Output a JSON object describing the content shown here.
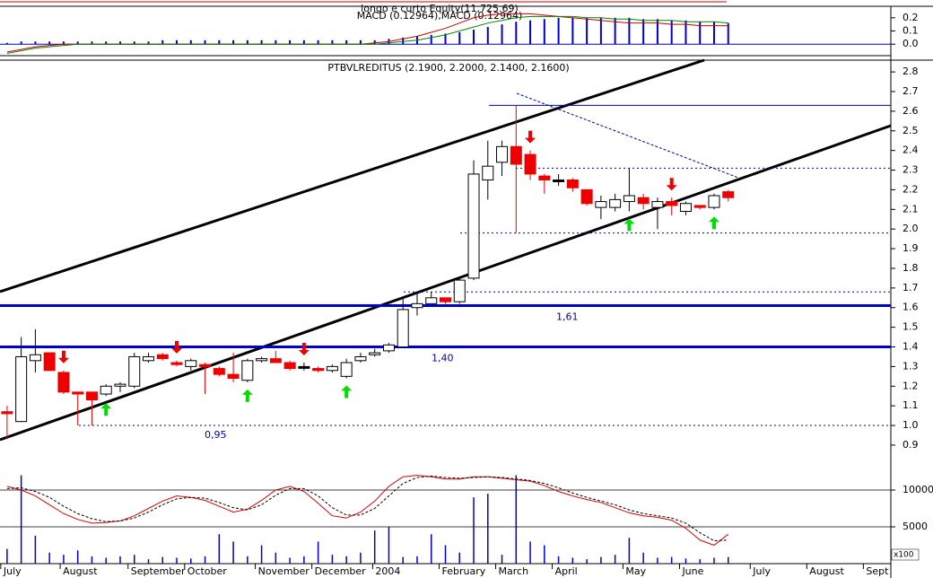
{
  "chart_data": [
    {
      "type": "macd",
      "title": "longo e curto Equity(11,725.69)",
      "subtitle": "MACD (0.12964),MACD (0.12964)",
      "xlim": [
        -0.5,
        62.5
      ],
      "ylim": [
        -0.087,
        0.287
      ],
      "yticks": [
        0.2,
        0.1,
        {
          "value": 0,
          "label": "0.0"
        }
      ],
      "bars": {
        "color": "#0000cc",
        "values": [
          0.01,
          0.02,
          0.02,
          0.02,
          0.02,
          0.02,
          0.02,
          0.02,
          0.02,
          0.02,
          0.02,
          0.03,
          0.03,
          0.03,
          0.03,
          0.03,
          0.03,
          0.03,
          0.03,
          0.03,
          0.03,
          0.03,
          0.03,
          0.03,
          0.03,
          0.03,
          0.03,
          0.04,
          0.05,
          0.06,
          0.07,
          0.08,
          0.09,
          0.11,
          0.13,
          0.15,
          0.17,
          0.18,
          0.19,
          0.2,
          0.2,
          0.2,
          0.2,
          0.2,
          0.2,
          0.19,
          0.19,
          0.18,
          0.18,
          0.17,
          0.17,
          0.16
        ]
      },
      "series": [
        {
          "color": "#cc0000",
          "values": [
            -0.06,
            -0.04,
            -0.02,
            -0.01,
            0,
            0,
            0,
            0,
            0,
            0,
            0,
            0,
            0,
            0,
            0,
            0,
            0,
            0,
            0,
            0,
            0,
            0,
            0,
            0,
            0,
            0,
            0.01,
            0.02,
            0.04,
            0.06,
            0.09,
            0.12,
            0.16,
            0.2,
            0.22,
            0.23,
            0.23,
            0.23,
            0.22,
            0.21,
            0.2,
            0.19,
            0.18,
            0.17,
            0.16,
            0.16,
            0.16,
            0.15,
            0.15,
            0.14,
            0.14,
            0.14
          ]
        },
        {
          "color": "#008800",
          "values": [
            -0.07,
            -0.05,
            -0.03,
            -0.02,
            -0.01,
            0,
            0,
            0,
            0,
            0,
            0,
            0,
            0,
            0,
            0,
            0,
            0,
            0,
            0,
            0,
            0,
            0,
            0,
            0,
            0,
            0,
            0,
            0.01,
            0.02,
            0.03,
            0.05,
            0.07,
            0.1,
            0.13,
            0.16,
            0.18,
            0.2,
            0.21,
            0.21,
            0.21,
            0.21,
            0.2,
            0.2,
            0.19,
            0.19,
            0.18,
            0.18,
            0.18,
            0.17,
            0.17,
            0.17,
            0.16
          ]
        }
      ]
    },
    {
      "type": "candlestick",
      "title": "PTBVLREDITUS (2.1900, 2.2000, 2.1400, 2.1600)",
      "xlim": [
        -0.5,
        62.5
      ],
      "ylim": [
        0.79,
        2.86
      ],
      "yticks": [
        2.8,
        2.7,
        2.6,
        2.5,
        2.4,
        2.3,
        2.2,
        2.1,
        {
          "value": 2,
          "label": "2.0"
        },
        1.9,
        1.8,
        1.7,
        1.6,
        1.5,
        1.4,
        1.3,
        1.2,
        1.1,
        {
          "value": 1,
          "label": "1.0"
        },
        0.9
      ],
      "open": [
        1.07,
        1.02,
        1.33,
        1.37,
        1.27,
        1.17,
        1.17,
        1.16,
        1.2,
        1.2,
        1.33,
        1.36,
        1.32,
        1.3,
        1.31,
        1.29,
        1.26,
        1.23,
        1.33,
        1.34,
        1.32,
        1.3,
        1.29,
        1.28,
        1.25,
        1.33,
        1.36,
        1.38,
        1.4,
        1.6,
        1.62,
        1.65,
        1.63,
        1.75,
        2.25,
        2.34,
        2.42,
        2.38,
        2.27,
        2.25,
        2.25,
        2.2,
        2.11,
        2.11,
        2.14,
        2.16,
        2.11,
        2.14,
        2.09,
        2.12,
        2.11,
        2.19
      ],
      "high": [
        1.1,
        1.45,
        1.49,
        1.37,
        1.28,
        1.17,
        1.17,
        1.21,
        1.22,
        1.37,
        1.37,
        1.37,
        1.33,
        1.34,
        1.32,
        1.3,
        1.37,
        1.34,
        1.35,
        1.38,
        1.33,
        1.32,
        1.3,
        1.31,
        1.34,
        1.37,
        1.39,
        1.42,
        1.65,
        1.67,
        1.68,
        1.65,
        1.75,
        2.35,
        2.45,
        2.45,
        2.63,
        2.4,
        2.28,
        2.28,
        2.26,
        2.2,
        2.17,
        2.18,
        2.31,
        2.18,
        2.16,
        2.16,
        2.14,
        2.12,
        2.18,
        2.2
      ],
      "low": [
        0.93,
        1.02,
        1.27,
        1.28,
        1.16,
        1,
        1,
        1.15,
        1.17,
        1.19,
        1.32,
        1.33,
        1.3,
        1.28,
        1.16,
        1.25,
        1.22,
        1.22,
        1.32,
        1.32,
        1.28,
        1.28,
        1.27,
        1.27,
        1.24,
        1.32,
        1.35,
        1.37,
        1.4,
        1.56,
        1.62,
        1.62,
        1.62,
        1.74,
        2.15,
        2.27,
        1.98,
        2.25,
        2.18,
        2.22,
        2.19,
        2.12,
        2.05,
        2.09,
        2.09,
        2.1,
        2,
        2.07,
        2.07,
        2.1,
        2.1,
        2.14
      ],
      "close": [
        1.06,
        1.35,
        1.36,
        1.28,
        1.17,
        1.16,
        1.13,
        1.2,
        1.21,
        1.35,
        1.35,
        1.34,
        1.31,
        1.33,
        1.3,
        1.26,
        1.24,
        1.33,
        1.34,
        1.32,
        1.29,
        1.3,
        1.28,
        1.3,
        1.32,
        1.35,
        1.37,
        1.41,
        1.59,
        1.62,
        1.65,
        1.63,
        1.74,
        2.28,
        2.32,
        2.42,
        2.33,
        2.28,
        2.25,
        2.25,
        2.21,
        2.13,
        2.14,
        2.15,
        2.17,
        2.13,
        2.14,
        2.12,
        2.13,
        2.11,
        2.17,
        2.16
      ],
      "levels": [
        {
          "value": 1.61,
          "label": "1,61"
        },
        {
          "value": 1.4,
          "label": "1,40"
        }
      ],
      "annotations": [
        {
          "value": 0.95,
          "label": "0,95"
        }
      ],
      "dotted_levels": [
        2.63,
        2.31,
        1.98,
        1.68,
        1
      ],
      "signals": {
        "down": [
          4,
          12,
          21,
          37,
          47
        ],
        "up": [
          7,
          17,
          24,
          44,
          50
        ]
      }
    },
    {
      "type": "volume",
      "unit": "x100",
      "xlim": [
        -0.5,
        62.5
      ],
      "ylim": [
        0,
        13170
      ],
      "yticks": [
        10000,
        5000
      ],
      "xticks": [
        {
          "value": 0,
          "label": "July"
        },
        {
          "value": 4.2,
          "label": "August"
        },
        {
          "value": 9,
          "label": "September"
        },
        {
          "value": 13,
          "label": "October"
        },
        {
          "value": 18,
          "label": "November"
        },
        {
          "value": 22,
          "label": "December"
        },
        {
          "value": 26.3,
          "label": "2004"
        },
        {
          "value": 31,
          "label": "February"
        },
        {
          "value": 35,
          "label": "March"
        },
        {
          "value": 39,
          "label": "April"
        },
        {
          "value": 44,
          "label": "May"
        },
        {
          "value": 48,
          "label": "June"
        },
        {
          "value": 53,
          "label": "July"
        },
        {
          "value": 57,
          "label": "August"
        },
        {
          "value": 61,
          "label": "Sept"
        }
      ],
      "values": [
        2000,
        12000,
        3800,
        1500,
        1200,
        1800,
        1000,
        800,
        1000,
        1200,
        600,
        900,
        800,
        700,
        1000,
        4000,
        3000,
        1000,
        2500,
        1500,
        800,
        1000,
        3000,
        1200,
        1000,
        1500,
        4500,
        5000,
        900,
        1000,
        4000,
        2500,
        1500,
        9000,
        9500,
        1200,
        12000,
        3000,
        2500,
        1000,
        800,
        600,
        900,
        1200,
        3500,
        1500,
        800,
        900,
        700,
        600,
        800,
        900
      ],
      "color": "#0000cc",
      "series": [
        {
          "color": "#dd0000",
          "values": [
            10500,
            10000,
            9200,
            8000,
            6800,
            6000,
            5500,
            5600,
            5800,
            6500,
            7500,
            8500,
            9200,
            9000,
            8600,
            7800,
            7000,
            7400,
            8600,
            10000,
            10500,
            9800,
            8200,
            6500,
            6200,
            7000,
            8500,
            10500,
            11800,
            12000,
            11800,
            11500,
            11500,
            11800,
            11800,
            11600,
            11400,
            11200,
            10600,
            9800,
            9200,
            8700,
            8300,
            7600,
            6900,
            6500,
            6300,
            5900,
            4800,
            3200,
            2500,
            4000
          ]
        },
        {
          "color": "#000000",
          "dashed": true,
          "values": [
            10200,
            10300,
            9800,
            9000,
            7800,
            6800,
            6100,
            5700,
            5800,
            6200,
            7000,
            8000,
            8800,
            9000,
            8900,
            8300,
            7600,
            7300,
            8000,
            9300,
            10200,
            10200,
            9200,
            7600,
            6600,
            6600,
            7500,
            9200,
            10900,
            11700,
            11900,
            11700,
            11600,
            11700,
            11800,
            11700,
            11500,
            11300,
            10900,
            10300,
            9600,
            9000,
            8500,
            8000,
            7300,
            6800,
            6500,
            6200,
            5500,
            4200,
            3100,
            3200
          ]
        }
      ]
    }
  ]
}
